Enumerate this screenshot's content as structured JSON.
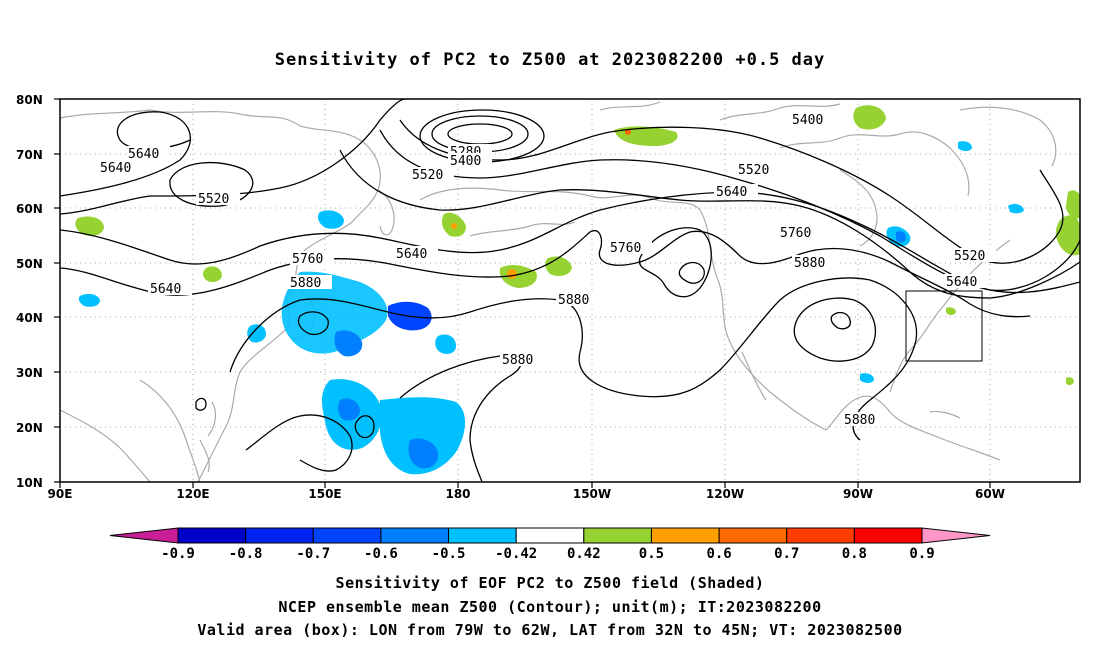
{
  "title": "Sensitivity of PC2 to Z500 at 2023082200 +0.5 day",
  "axes": {
    "lat_ticks": [
      "80N",
      "70N",
      "60N",
      "50N",
      "40N",
      "30N",
      "20N",
      "10N"
    ],
    "lon_ticks": [
      "90E",
      "120E",
      "150E",
      "180",
      "150W",
      "120W",
      "90W",
      "60W"
    ]
  },
  "contour_labels": [
    {
      "text": "5640"
    },
    {
      "text": "5640"
    },
    {
      "text": "5520"
    },
    {
      "text": "5640"
    },
    {
      "text": "5760"
    },
    {
      "text": "5880"
    },
    {
      "text": "5640"
    },
    {
      "text": "5280"
    },
    {
      "text": "5400"
    },
    {
      "text": "5520"
    },
    {
      "text": "5760"
    },
    {
      "text": "5880"
    },
    {
      "text": "5880"
    },
    {
      "text": "5520"
    },
    {
      "text": "5640"
    },
    {
      "text": "5760"
    },
    {
      "text": "5880"
    },
    {
      "text": "5400"
    },
    {
      "text": "5520"
    },
    {
      "text": "5640"
    },
    {
      "text": "5880"
    }
  ],
  "legend": {
    "labels": [
      "-0.9",
      "-0.8",
      "-0.7",
      "-0.6",
      "-0.5",
      "-0.42",
      "0.42",
      "0.5",
      "0.6",
      "0.7",
      "0.8",
      "0.9"
    ],
    "colors": [
      "#0000c8",
      "#0022ee",
      "#0044ff",
      "#0080ff",
      "#00c0ff",
      "#ffffff",
      "#96d232",
      "#ffa000",
      "#ff6a00",
      "#ff3c00",
      "#ff0000"
    ],
    "low_color": "#c81e96",
    "high_color": "#ff96c8"
  },
  "captions": {
    "line1": "Sensitivity of EOF PC2 to Z500 field (Shaded)",
    "line2": "NCEP ensemble mean Z500 (Contour); unit(m); IT:2023082200",
    "line3": "Valid area (box): LON from 79W to 62W, LAT from 32N to 45N; VT: 2023082500"
  }
}
